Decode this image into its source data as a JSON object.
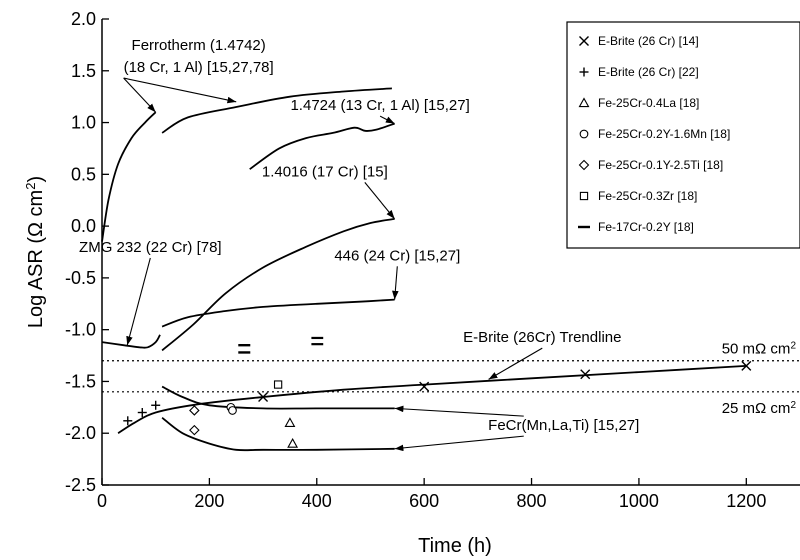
{
  "chart_data": {
    "type": "scatter",
    "title": "",
    "xlabel": "Time (h)",
    "ylabel_main": "Log ASR (Ω cm",
    "ylabel_sup": "2",
    "ylabel_close": ")",
    "xlim": [
      0,
      1300
    ],
    "ylim": [
      -2.5,
      2.0
    ],
    "x_ticks": [
      0,
      200,
      400,
      600,
      800,
      1000,
      1200
    ],
    "y_ticks": [
      -2.5,
      -2.0,
      -1.5,
      -1.0,
      -0.5,
      0.0,
      0.5,
      1.0,
      1.5,
      2.0
    ],
    "y_tick_labels": [
      "-2.5",
      "-2.0",
      "-1.5",
      "-1.0",
      "-0.5",
      "0.0",
      "0.5",
      "1.0",
      "1.5",
      "2.0"
    ],
    "grid": false,
    "legend_position": "top-right",
    "legend": [
      {
        "marker": "x",
        "label": "E-Brite (26 Cr) [14]"
      },
      {
        "marker": "plus",
        "label": "E-Brite (26 Cr) [22]"
      },
      {
        "marker": "triangle",
        "label": "Fe-25Cr-0.4La [18]"
      },
      {
        "marker": "circle",
        "label": "Fe-25Cr-0.2Y-1.6Mn [18]"
      },
      {
        "marker": "diamond",
        "label": "Fe-25Cr-0.1Y-2.5Ti [18]"
      },
      {
        "marker": "square",
        "label": "Fe-25Cr-0.3Zr [18]"
      },
      {
        "marker": "dash",
        "label": "Fe-17Cr-0.2Y [18]"
      }
    ],
    "series": [
      {
        "marker": "x",
        "points": [
          [
            300,
            -1.65
          ],
          [
            600,
            -1.55
          ],
          [
            900,
            -1.43
          ],
          [
            1200,
            -1.35
          ]
        ]
      },
      {
        "marker": "plus",
        "points": [
          [
            48,
            -1.88
          ],
          [
            75,
            -1.8
          ],
          [
            100,
            -1.73
          ]
        ]
      },
      {
        "marker": "triangle",
        "points": [
          [
            350,
            -1.9
          ],
          [
            355,
            -2.1
          ]
        ]
      },
      {
        "marker": "circle",
        "points": [
          [
            240,
            -1.75
          ],
          [
            243,
            -1.78
          ]
        ]
      },
      {
        "marker": "diamond",
        "points": [
          [
            172,
            -1.78
          ],
          [
            172,
            -1.97
          ]
        ]
      },
      {
        "marker": "square",
        "points": [
          [
            328,
            -1.53
          ]
        ]
      },
      {
        "marker": "dash",
        "points": [
          [
            265,
            -1.15
          ],
          [
            265,
            -1.22
          ]
        ]
      }
    ],
    "curves": [
      {
        "name": "ferrotherm-rise",
        "points": [
          [
            0,
            -0.15
          ],
          [
            12,
            0.25
          ],
          [
            30,
            0.6
          ],
          [
            55,
            0.85
          ],
          [
            80,
            1.0
          ],
          [
            100,
            1.1
          ]
        ]
      },
      {
        "name": "ferrotherm-plateau",
        "points": [
          [
            112,
            0.9
          ],
          [
            160,
            1.05
          ],
          [
            250,
            1.15
          ],
          [
            350,
            1.25
          ],
          [
            450,
            1.3
          ],
          [
            540,
            1.33
          ]
        ]
      },
      {
        "name": "curve-1.4724",
        "points": [
          [
            275,
            0.55
          ],
          [
            330,
            0.75
          ],
          [
            380,
            0.85
          ],
          [
            430,
            0.9
          ],
          [
            470,
            0.95
          ],
          [
            490,
            0.92
          ],
          [
            510,
            0.93
          ],
          [
            545,
            0.99
          ]
        ]
      },
      {
        "name": "curve-1.4016",
        "points": [
          [
            112,
            -1.2
          ],
          [
            170,
            -0.95
          ],
          [
            230,
            -0.65
          ],
          [
            300,
            -0.4
          ],
          [
            380,
            -0.2
          ],
          [
            450,
            -0.05
          ],
          [
            500,
            0.03
          ],
          [
            545,
            0.07
          ]
        ]
      },
      {
        "name": "curve-zmg",
        "points": [
          [
            0,
            -1.12
          ],
          [
            40,
            -1.15
          ],
          [
            70,
            -1.17
          ],
          [
            85,
            -1.17
          ],
          [
            100,
            -1.12
          ],
          [
            108,
            -1.05
          ]
        ]
      },
      {
        "name": "curve-446",
        "points": [
          [
            112,
            -0.97
          ],
          [
            160,
            -0.88
          ],
          [
            230,
            -0.82
          ],
          [
            300,
            -0.78
          ],
          [
            400,
            -0.75
          ],
          [
            480,
            -0.73
          ],
          [
            545,
            -0.71
          ]
        ]
      },
      {
        "name": "ebrite-trendline",
        "points": [
          [
            30,
            -2.0
          ],
          [
            60,
            -1.9
          ],
          [
            100,
            -1.8
          ],
          [
            180,
            -1.72
          ],
          [
            300,
            -1.65
          ],
          [
            450,
            -1.58
          ],
          [
            600,
            -1.53
          ],
          [
            800,
            -1.47
          ],
          [
            1000,
            -1.41
          ],
          [
            1200,
            -1.35
          ]
        ]
      },
      {
        "name": "fecr-upper",
        "points": [
          [
            112,
            -1.55
          ],
          [
            150,
            -1.65
          ],
          [
            200,
            -1.73
          ],
          [
            300,
            -1.76
          ],
          [
            400,
            -1.76
          ],
          [
            545,
            -1.76
          ]
        ]
      },
      {
        "name": "fecr-lower",
        "points": [
          [
            112,
            -1.85
          ],
          [
            150,
            -2.0
          ],
          [
            200,
            -2.1
          ],
          [
            250,
            -2.16
          ],
          [
            300,
            -2.16
          ],
          [
            400,
            -2.16
          ],
          [
            545,
            -2.15
          ]
        ]
      }
    ],
    "reference_lines": [
      {
        "y": -1.3,
        "label": "50 mΩ cm",
        "sup": "2"
      },
      {
        "y": -1.6,
        "label": "25 mΩ cm",
        "sup": "2"
      }
    ],
    "annotations": [
      {
        "lines": [
          "Ferrotherm (1.4742)",
          "(18 Cr, 1 Al) [15,27,78]"
        ],
        "tx": 180,
        "ty": 1.7,
        "arrows": [
          [
            100,
            1.1
          ],
          [
            250,
            1.2
          ]
        ]
      },
      {
        "lines": [
          "1.4724 (13 Cr, 1 Al) [15,27]"
        ],
        "tx": 518,
        "ty": 1.12,
        "arrows": [
          [
            545,
            0.99
          ]
        ]
      },
      {
        "lines": [
          "1.4016 (17 Cr) [15]"
        ],
        "tx": 415,
        "ty": 0.48,
        "arrows": [
          [
            545,
            0.07
          ]
        ]
      },
      {
        "lines": [
          "ZMG 232 (22 Cr) [78]"
        ],
        "tx": 90,
        "ty": -0.25,
        "arrows": [
          [
            47,
            -1.15
          ]
        ]
      },
      {
        "lines": [
          "446 (24 Cr) [15,27]"
        ],
        "tx": 550,
        "ty": -0.33,
        "arrows": [
          [
            545,
            -0.71
          ]
        ]
      },
      {
        "lines": [
          "E-Brite (26Cr) Trendline"
        ],
        "tx": 820,
        "ty": -1.12,
        "arrows": [
          [
            720,
            -1.48
          ]
        ]
      },
      {
        "lines": [
          "FeCr(Mn,La,Ti) [15,27]"
        ],
        "tx": 860,
        "ty": -1.97,
        "arrows": [
          [
            545,
            -1.76
          ],
          [
            545,
            -2.15
          ]
        ]
      }
    ]
  }
}
